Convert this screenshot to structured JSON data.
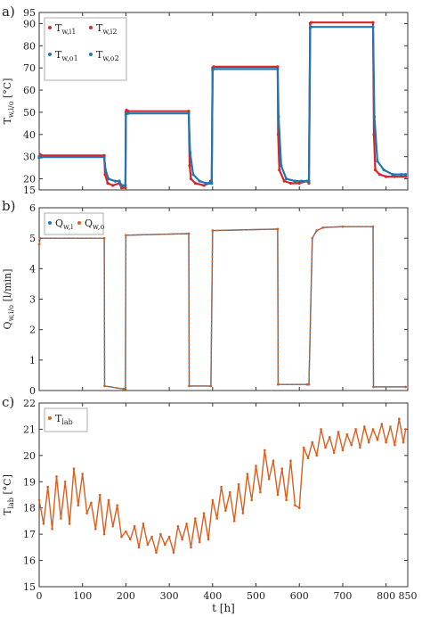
{
  "figure": {
    "xaxis_label": "t [h]",
    "xticks": [
      0,
      100,
      200,
      300,
      400,
      500,
      600,
      700,
      800,
      850
    ]
  },
  "colors": {
    "red": "#d62728",
    "blue": "#1f77b4",
    "orange": "#d95f1e",
    "axis": "#333333"
  },
  "chart_data": [
    {
      "type": "scatter",
      "panel_label": "a)",
      "ylabel_main": "T",
      "ylabel_sub": "w,i/o",
      "ylabel_unit": " [°C]",
      "xlim": [
        0,
        850
      ],
      "ylim": [
        15,
        95
      ],
      "yticks": [
        15,
        20,
        30,
        40,
        50,
        60,
        70,
        80,
        90,
        95
      ],
      "legend_position": "top-left",
      "legend": [
        {
          "main": "T",
          "sub": "w,i1",
          "color": "#d62728"
        },
        {
          "main": "T",
          "sub": "w,i2",
          "color": "#d62728"
        },
        {
          "main": "T",
          "sub": "w,o1",
          "color": "#1f77b4"
        },
        {
          "main": "T",
          "sub": "w,o2",
          "color": "#1f77b4"
        }
      ],
      "series": [
        {
          "name": "T_w,i",
          "color": "#d62728",
          "x": [
            0,
            2,
            5,
            150,
            152,
            158,
            170,
            185,
            190,
            192,
            199,
            200,
            201,
            205,
            345,
            347,
            350,
            360,
            380,
            392,
            395,
            398,
            400,
            402,
            550,
            551,
            554,
            565,
            580,
            600,
            618,
            622,
            625,
            627,
            770,
            772,
            775,
            785,
            800,
            820,
            845
          ],
          "y": [
            30,
            31,
            30.5,
            30.5,
            22,
            18,
            17,
            18,
            16,
            16,
            16,
            50,
            51,
            50.5,
            50.5,
            26,
            20,
            18,
            17,
            18,
            19,
            18,
            70,
            70.5,
            70.5,
            40,
            24,
            19,
            18,
            18,
            19,
            18,
            90,
            90.5,
            90.5,
            40,
            24,
            22,
            21,
            21,
            21
          ]
        },
        {
          "name": "T_w,o",
          "color": "#1f77b4",
          "x": [
            0,
            2,
            5,
            150,
            153,
            160,
            175,
            185,
            190,
            192,
            199,
            200,
            201,
            205,
            345,
            348,
            355,
            370,
            385,
            392,
            395,
            398,
            400,
            402,
            550,
            552,
            558,
            570,
            590,
            605,
            618,
            622,
            625,
            627,
            770,
            773,
            780,
            795,
            815,
            835,
            845
          ],
          "y": [
            29.5,
            30,
            29.8,
            29.8,
            24,
            20,
            19,
            19,
            17,
            17,
            17,
            49,
            49.5,
            49.5,
            49.5,
            32,
            22,
            19,
            18,
            18,
            18,
            18,
            69,
            69.5,
            69.5,
            48,
            26,
            20,
            19,
            19,
            19,
            19,
            88,
            88.5,
            88.5,
            48,
            28,
            24,
            22,
            22,
            22
          ]
        }
      ]
    },
    {
      "type": "line",
      "panel_label": "b)",
      "ylabel_main": "Q",
      "ylabel_sub": "w,i/o",
      "ylabel_unit": " [l/min]",
      "xlim": [
        0,
        850
      ],
      "ylim": [
        0,
        6
      ],
      "yticks": [
        0,
        1,
        2,
        3,
        4,
        5,
        6
      ],
      "legend_position": "top-left",
      "legend": [
        {
          "main": "Q",
          "sub": "w,i",
          "color": "#1f77b4"
        },
        {
          "main": "Q",
          "sub": "w,o",
          "color": "#d95f1e"
        }
      ],
      "series": [
        {
          "name": "Q_w,i",
          "color": "#1f77b4",
          "x": [
            0,
            2,
            150,
            151,
            195,
            197,
            199,
            200,
            345,
            346,
            396,
            400,
            550,
            551,
            618,
            622,
            630,
            640,
            655,
            700,
            770,
            771,
            845
          ],
          "y": [
            4.8,
            5.0,
            5.0,
            0.15,
            0.05,
            0.05,
            0.05,
            5.1,
            5.15,
            0.15,
            0.15,
            5.25,
            5.3,
            0.2,
            0.2,
            0.2,
            5.0,
            5.25,
            5.35,
            5.38,
            5.38,
            0.12,
            0.12
          ]
        },
        {
          "name": "Q_w,o",
          "color": "#d95f1e",
          "x": [
            0,
            2,
            150,
            151,
            195,
            197,
            199,
            200,
            345,
            346,
            396,
            400,
            550,
            551,
            618,
            622,
            630,
            640,
            655,
            700,
            770,
            771,
            845
          ],
          "y": [
            4.8,
            5.0,
            5.0,
            0.15,
            0.05,
            0.05,
            0.05,
            5.1,
            5.15,
            0.15,
            0.15,
            5.25,
            5.3,
            0.2,
            0.2,
            0.2,
            5.0,
            5.25,
            5.35,
            5.38,
            5.38,
            0.12,
            0.12
          ]
        }
      ]
    },
    {
      "type": "line",
      "panel_label": "c)",
      "ylabel_main": "T",
      "ylabel_sub": "lab",
      "ylabel_unit": " [°C]",
      "xlim": [
        0,
        850
      ],
      "ylim": [
        15,
        22
      ],
      "yticks": [
        15,
        16,
        17,
        18,
        19,
        20,
        21,
        22
      ],
      "legend_position": "top-left",
      "legend": [
        {
          "main": "T",
          "sub": "lab",
          "color": "#d95f1e"
        }
      ],
      "series": [
        {
          "name": "T_lab",
          "color": "#d95f1e",
          "x": [
            0,
            10,
            20,
            30,
            40,
            50,
            60,
            70,
            80,
            90,
            100,
            110,
            120,
            130,
            140,
            150,
            160,
            170,
            180,
            190,
            200,
            210,
            220,
            230,
            240,
            250,
            260,
            270,
            280,
            290,
            300,
            310,
            320,
            330,
            340,
            350,
            360,
            370,
            380,
            390,
            400,
            410,
            420,
            430,
            440,
            450,
            460,
            470,
            480,
            490,
            500,
            510,
            520,
            530,
            540,
            550,
            560,
            570,
            580,
            590,
            600,
            610,
            620,
            630,
            640,
            650,
            660,
            670,
            680,
            690,
            700,
            710,
            720,
            730,
            740,
            750,
            760,
            770,
            780,
            790,
            800,
            810,
            820,
            830,
            840,
            845
          ],
          "y": [
            18.3,
            17.4,
            18.8,
            17.2,
            19.2,
            17.6,
            19.0,
            17.4,
            19.5,
            18.1,
            19.3,
            17.8,
            18.2,
            17.2,
            18.5,
            17.0,
            18.3,
            17.3,
            18.1,
            16.9,
            17.1,
            16.8,
            17.3,
            16.5,
            17.4,
            16.6,
            16.9,
            16.3,
            17.0,
            16.6,
            16.9,
            16.3,
            17.3,
            16.8,
            17.4,
            16.5,
            17.6,
            16.7,
            17.8,
            16.8,
            18.3,
            17.6,
            18.8,
            17.9,
            18.6,
            17.5,
            18.9,
            17.8,
            19.3,
            18.3,
            19.6,
            18.6,
            20.2,
            19.1,
            19.8,
            18.5,
            19.5,
            18.3,
            19.8,
            18.1,
            18.0,
            20.3,
            19.9,
            20.5,
            20.0,
            21.0,
            20.3,
            20.7,
            20.1,
            20.9,
            20.2,
            20.8,
            20.4,
            21.0,
            20.3,
            21.1,
            20.5,
            21.0,
            20.6,
            21.2,
            20.5,
            21.1,
            20.4,
            21.4,
            20.5,
            21.0
          ]
        }
      ]
    }
  ]
}
